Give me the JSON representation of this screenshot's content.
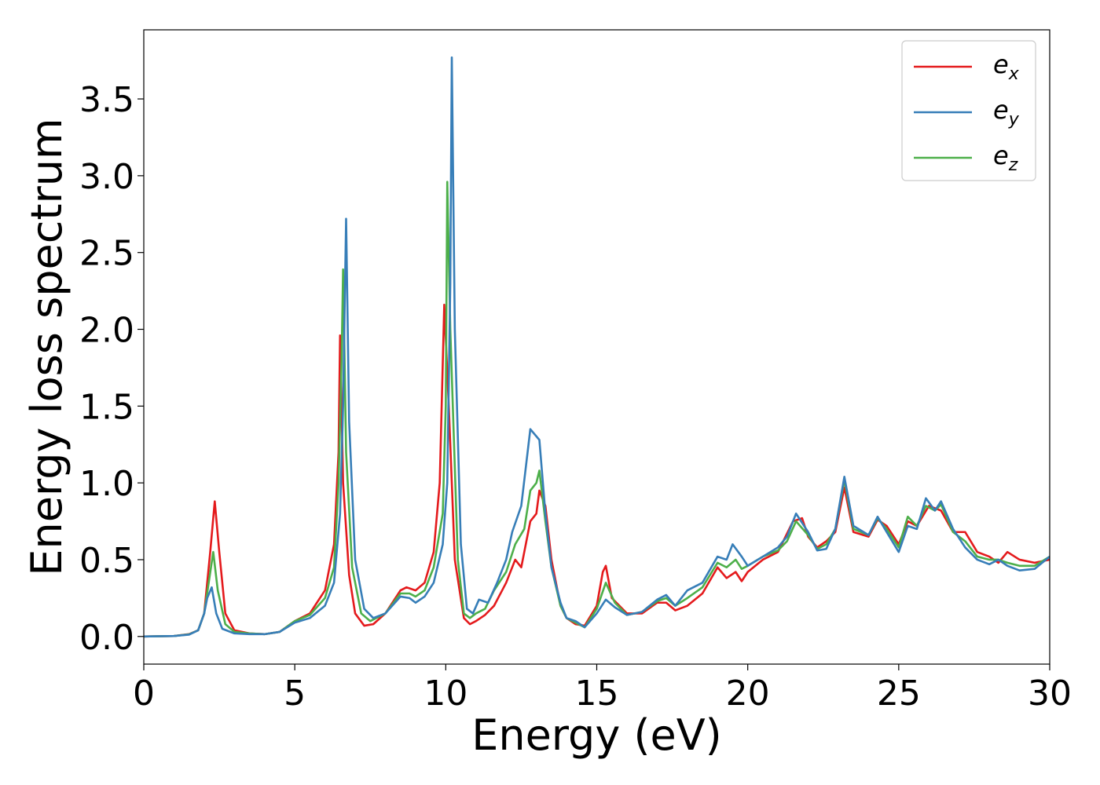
{
  "chart_data": {
    "type": "line",
    "title": "",
    "xlabel": "Energy (eV)",
    "ylabel": "Energy loss spectrum",
    "xlim": [
      0,
      30
    ],
    "ylim": [
      -0.18,
      3.95
    ],
    "xticks": [
      0,
      5,
      10,
      15,
      20,
      25,
      30
    ],
    "yticks": [
      0.0,
      0.5,
      1.0,
      1.5,
      2.0,
      2.5,
      3.0,
      3.5
    ],
    "xtick_labels": [
      "0",
      "5",
      "10",
      "15",
      "20",
      "25",
      "30"
    ],
    "ytick_labels": [
      "0.0",
      "0.5",
      "1.0",
      "1.5",
      "2.0",
      "2.5",
      "3.0",
      "3.5"
    ],
    "grid": false,
    "legend_position": "top-right",
    "series": [
      {
        "name": "e_x",
        "label_base": "e",
        "label_sub": "x",
        "color": "#e41a1c",
        "points": [
          [
            0,
            0.0
          ],
          [
            1,
            0.003
          ],
          [
            1.5,
            0.015
          ],
          [
            1.8,
            0.04
          ],
          [
            2.0,
            0.15
          ],
          [
            2.2,
            0.55
          ],
          [
            2.35,
            0.88
          ],
          [
            2.5,
            0.55
          ],
          [
            2.7,
            0.15
          ],
          [
            3.0,
            0.04
          ],
          [
            3.5,
            0.02
          ],
          [
            4.0,
            0.015
          ],
          [
            4.5,
            0.03
          ],
          [
            5.0,
            0.1
          ],
          [
            5.5,
            0.15
          ],
          [
            6.0,
            0.3
          ],
          [
            6.3,
            0.6
          ],
          [
            6.45,
            1.2
          ],
          [
            6.5,
            1.96
          ],
          [
            6.6,
            1.0
          ],
          [
            6.8,
            0.4
          ],
          [
            7.0,
            0.15
          ],
          [
            7.3,
            0.07
          ],
          [
            7.6,
            0.08
          ],
          [
            8.0,
            0.15
          ],
          [
            8.5,
            0.3
          ],
          [
            8.7,
            0.32
          ],
          [
            9.0,
            0.3
          ],
          [
            9.3,
            0.35
          ],
          [
            9.6,
            0.55
          ],
          [
            9.8,
            1.0
          ],
          [
            9.95,
            2.16
          ],
          [
            10.1,
            1.5
          ],
          [
            10.3,
            0.5
          ],
          [
            10.6,
            0.12
          ],
          [
            10.8,
            0.08
          ],
          [
            11.0,
            0.1
          ],
          [
            11.3,
            0.14
          ],
          [
            11.6,
            0.2
          ],
          [
            12.0,
            0.35
          ],
          [
            12.3,
            0.5
          ],
          [
            12.5,
            0.45
          ],
          [
            12.8,
            0.75
          ],
          [
            13.0,
            0.8
          ],
          [
            13.1,
            0.95
          ],
          [
            13.3,
            0.85
          ],
          [
            13.5,
            0.5
          ],
          [
            13.8,
            0.2
          ],
          [
            14.0,
            0.12
          ],
          [
            14.3,
            0.08
          ],
          [
            14.6,
            0.07
          ],
          [
            15.0,
            0.2
          ],
          [
            15.2,
            0.42
          ],
          [
            15.3,
            0.46
          ],
          [
            15.5,
            0.25
          ],
          [
            16.0,
            0.15
          ],
          [
            16.5,
            0.15
          ],
          [
            17.0,
            0.22
          ],
          [
            17.3,
            0.22
          ],
          [
            17.6,
            0.17
          ],
          [
            18.0,
            0.2
          ],
          [
            18.5,
            0.28
          ],
          [
            19.0,
            0.45
          ],
          [
            19.3,
            0.38
          ],
          [
            19.6,
            0.42
          ],
          [
            19.8,
            0.36
          ],
          [
            20.0,
            0.42
          ],
          [
            20.5,
            0.5
          ],
          [
            21.0,
            0.55
          ],
          [
            21.5,
            0.75
          ],
          [
            21.8,
            0.77
          ],
          [
            22.0,
            0.65
          ],
          [
            22.3,
            0.58
          ],
          [
            22.6,
            0.62
          ],
          [
            22.9,
            0.68
          ],
          [
            23.2,
            0.97
          ],
          [
            23.5,
            0.68
          ],
          [
            24.0,
            0.65
          ],
          [
            24.3,
            0.76
          ],
          [
            24.6,
            0.72
          ],
          [
            25.0,
            0.6
          ],
          [
            25.3,
            0.75
          ],
          [
            25.6,
            0.72
          ],
          [
            26.0,
            0.85
          ],
          [
            26.4,
            0.82
          ],
          [
            26.8,
            0.68
          ],
          [
            27.2,
            0.68
          ],
          [
            27.6,
            0.55
          ],
          [
            28.0,
            0.52
          ],
          [
            28.3,
            0.48
          ],
          [
            28.6,
            0.55
          ],
          [
            29.0,
            0.5
          ],
          [
            29.5,
            0.48
          ],
          [
            30.0,
            0.5
          ]
        ]
      },
      {
        "name": "e_y",
        "label_base": "e",
        "label_sub": "y",
        "color": "#377eb8",
        "points": [
          [
            0,
            0.0
          ],
          [
            1,
            0.003
          ],
          [
            1.5,
            0.012
          ],
          [
            1.8,
            0.04
          ],
          [
            2.0,
            0.15
          ],
          [
            2.1,
            0.25
          ],
          [
            2.25,
            0.32
          ],
          [
            2.4,
            0.15
          ],
          [
            2.6,
            0.05
          ],
          [
            3.0,
            0.02
          ],
          [
            3.5,
            0.015
          ],
          [
            4.0,
            0.015
          ],
          [
            4.5,
            0.03
          ],
          [
            5.0,
            0.09
          ],
          [
            5.5,
            0.12
          ],
          [
            6.0,
            0.2
          ],
          [
            6.3,
            0.35
          ],
          [
            6.5,
            0.8
          ],
          [
            6.6,
            1.5
          ],
          [
            6.7,
            2.72
          ],
          [
            6.8,
            1.4
          ],
          [
            7.0,
            0.5
          ],
          [
            7.3,
            0.18
          ],
          [
            7.6,
            0.12
          ],
          [
            8.0,
            0.15
          ],
          [
            8.5,
            0.26
          ],
          [
            8.8,
            0.25
          ],
          [
            9.0,
            0.22
          ],
          [
            9.3,
            0.26
          ],
          [
            9.6,
            0.35
          ],
          [
            9.9,
            0.6
          ],
          [
            10.05,
            1.0
          ],
          [
            10.15,
            2.3
          ],
          [
            10.2,
            3.77
          ],
          [
            10.3,
            2.0
          ],
          [
            10.5,
            0.6
          ],
          [
            10.7,
            0.18
          ],
          [
            10.9,
            0.15
          ],
          [
            11.1,
            0.24
          ],
          [
            11.4,
            0.22
          ],
          [
            11.7,
            0.35
          ],
          [
            12.0,
            0.5
          ],
          [
            12.2,
            0.68
          ],
          [
            12.5,
            0.85
          ],
          [
            12.8,
            1.35
          ],
          [
            13.1,
            1.28
          ],
          [
            13.3,
            0.8
          ],
          [
            13.5,
            0.45
          ],
          [
            13.8,
            0.22
          ],
          [
            14.0,
            0.12
          ],
          [
            14.3,
            0.1
          ],
          [
            14.6,
            0.06
          ],
          [
            15.0,
            0.15
          ],
          [
            15.3,
            0.24
          ],
          [
            15.6,
            0.19
          ],
          [
            16.0,
            0.14
          ],
          [
            16.5,
            0.16
          ],
          [
            17.0,
            0.24
          ],
          [
            17.3,
            0.27
          ],
          [
            17.6,
            0.2
          ],
          [
            18.0,
            0.3
          ],
          [
            18.5,
            0.35
          ],
          [
            19.0,
            0.52
          ],
          [
            19.3,
            0.5
          ],
          [
            19.5,
            0.6
          ],
          [
            19.8,
            0.52
          ],
          [
            20.0,
            0.46
          ],
          [
            20.5,
            0.52
          ],
          [
            21.0,
            0.58
          ],
          [
            21.3,
            0.65
          ],
          [
            21.6,
            0.8
          ],
          [
            22.0,
            0.68
          ],
          [
            22.3,
            0.56
          ],
          [
            22.6,
            0.57
          ],
          [
            22.9,
            0.7
          ],
          [
            23.2,
            1.04
          ],
          [
            23.5,
            0.72
          ],
          [
            24.0,
            0.66
          ],
          [
            24.3,
            0.78
          ],
          [
            24.6,
            0.68
          ],
          [
            25.0,
            0.55
          ],
          [
            25.3,
            0.72
          ],
          [
            25.6,
            0.7
          ],
          [
            25.9,
            0.9
          ],
          [
            26.2,
            0.82
          ],
          [
            26.4,
            0.88
          ],
          [
            26.8,
            0.7
          ],
          [
            27.2,
            0.58
          ],
          [
            27.6,
            0.5
          ],
          [
            28.0,
            0.47
          ],
          [
            28.3,
            0.5
          ],
          [
            28.6,
            0.46
          ],
          [
            29.0,
            0.43
          ],
          [
            29.5,
            0.44
          ],
          [
            30.0,
            0.52
          ]
        ]
      },
      {
        "name": "e_z",
        "label_base": "e",
        "label_sub": "z",
        "color": "#4daf4a",
        "points": [
          [
            0,
            0.0
          ],
          [
            1,
            0.003
          ],
          [
            1.5,
            0.014
          ],
          [
            1.8,
            0.04
          ],
          [
            2.0,
            0.15
          ],
          [
            2.15,
            0.35
          ],
          [
            2.3,
            0.55
          ],
          [
            2.45,
            0.3
          ],
          [
            2.7,
            0.08
          ],
          [
            3.0,
            0.03
          ],
          [
            3.5,
            0.02
          ],
          [
            4.0,
            0.015
          ],
          [
            4.5,
            0.03
          ],
          [
            5.0,
            0.1
          ],
          [
            5.5,
            0.14
          ],
          [
            6.0,
            0.25
          ],
          [
            6.3,
            0.45
          ],
          [
            6.45,
            1.0
          ],
          [
            6.55,
            1.8
          ],
          [
            6.6,
            2.39
          ],
          [
            6.7,
            1.2
          ],
          [
            6.9,
            0.45
          ],
          [
            7.2,
            0.15
          ],
          [
            7.5,
            0.1
          ],
          [
            8.0,
            0.15
          ],
          [
            8.5,
            0.28
          ],
          [
            8.8,
            0.28
          ],
          [
            9.0,
            0.26
          ],
          [
            9.3,
            0.3
          ],
          [
            9.6,
            0.45
          ],
          [
            9.9,
            0.8
          ],
          [
            10.0,
            1.5
          ],
          [
            10.05,
            2.96
          ],
          [
            10.15,
            2.0
          ],
          [
            10.4,
            0.5
          ],
          [
            10.6,
            0.15
          ],
          [
            10.8,
            0.12
          ],
          [
            11.0,
            0.15
          ],
          [
            11.3,
            0.18
          ],
          [
            11.6,
            0.3
          ],
          [
            12.0,
            0.42
          ],
          [
            12.3,
            0.6
          ],
          [
            12.6,
            0.7
          ],
          [
            12.8,
            0.95
          ],
          [
            13.0,
            1.0
          ],
          [
            13.1,
            1.08
          ],
          [
            13.3,
            0.75
          ],
          [
            13.5,
            0.45
          ],
          [
            13.8,
            0.2
          ],
          [
            14.0,
            0.12
          ],
          [
            14.3,
            0.09
          ],
          [
            14.6,
            0.06
          ],
          [
            15.0,
            0.18
          ],
          [
            15.3,
            0.35
          ],
          [
            15.6,
            0.22
          ],
          [
            16.0,
            0.14
          ],
          [
            16.5,
            0.16
          ],
          [
            17.0,
            0.23
          ],
          [
            17.3,
            0.25
          ],
          [
            17.6,
            0.2
          ],
          [
            18.0,
            0.25
          ],
          [
            18.5,
            0.32
          ],
          [
            19.0,
            0.48
          ],
          [
            19.3,
            0.45
          ],
          [
            19.6,
            0.5
          ],
          [
            19.8,
            0.44
          ],
          [
            20.0,
            0.46
          ],
          [
            20.5,
            0.52
          ],
          [
            21.0,
            0.56
          ],
          [
            21.3,
            0.62
          ],
          [
            21.6,
            0.75
          ],
          [
            22.0,
            0.66
          ],
          [
            22.3,
            0.57
          ],
          [
            22.6,
            0.6
          ],
          [
            22.9,
            0.7
          ],
          [
            23.2,
            1.02
          ],
          [
            23.5,
            0.7
          ],
          [
            24.0,
            0.66
          ],
          [
            24.3,
            0.77
          ],
          [
            24.6,
            0.7
          ],
          [
            25.0,
            0.58
          ],
          [
            25.3,
            0.78
          ],
          [
            25.6,
            0.72
          ],
          [
            25.9,
            0.85
          ],
          [
            26.2,
            0.82
          ],
          [
            26.4,
            0.86
          ],
          [
            26.8,
            0.68
          ],
          [
            27.2,
            0.62
          ],
          [
            27.6,
            0.52
          ],
          [
            28.0,
            0.5
          ],
          [
            28.3,
            0.5
          ],
          [
            28.6,
            0.48
          ],
          [
            29.0,
            0.46
          ],
          [
            29.5,
            0.46
          ],
          [
            30.0,
            0.52
          ]
        ]
      }
    ]
  }
}
